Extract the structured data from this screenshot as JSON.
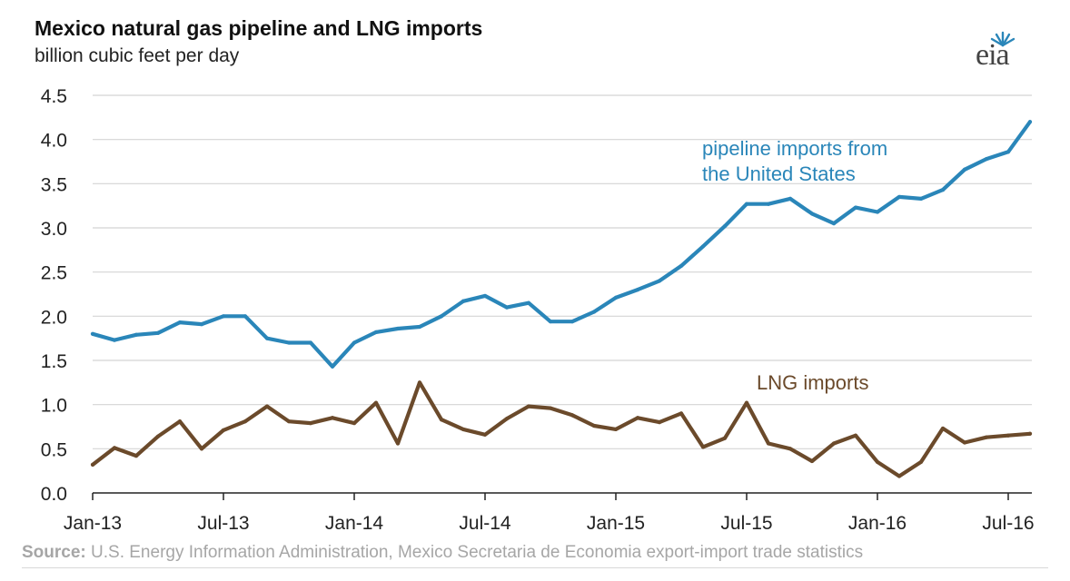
{
  "chart_data": {
    "type": "line",
    "title": "Mexico natural gas pipeline and LNG imports",
    "subtitle": "billion cubic feet per day",
    "xlabel": "",
    "ylabel": "",
    "ylim": [
      0,
      4.5
    ],
    "yticks": [
      "0.0",
      "0.5",
      "1.0",
      "1.5",
      "2.0",
      "2.5",
      "3.0",
      "3.5",
      "4.0",
      "4.5"
    ],
    "xticks": [
      "Jan-13",
      "Jul-13",
      "Jan-14",
      "Jul-14",
      "Jan-15",
      "Jul-15",
      "Jan-16",
      "Jul-16"
    ],
    "grid": true,
    "legend": "none",
    "x": [
      "2013-01",
      "2013-02",
      "2013-03",
      "2013-04",
      "2013-05",
      "2013-06",
      "2013-07",
      "2013-08",
      "2013-09",
      "2013-10",
      "2013-11",
      "2013-12",
      "2014-01",
      "2014-02",
      "2014-03",
      "2014-04",
      "2014-05",
      "2014-06",
      "2014-07",
      "2014-08",
      "2014-09",
      "2014-10",
      "2014-11",
      "2014-12",
      "2015-01",
      "2015-02",
      "2015-03",
      "2015-04",
      "2015-05",
      "2015-06",
      "2015-07",
      "2015-08",
      "2015-09",
      "2015-10",
      "2015-11",
      "2015-12",
      "2016-01",
      "2016-02",
      "2016-03",
      "2016-04",
      "2016-05",
      "2016-06",
      "2016-07",
      "2016-08"
    ],
    "series": [
      {
        "name": "pipeline imports from the United States",
        "label_lines": [
          "pipeline imports from",
          "the United States"
        ],
        "color": "#2a86b9",
        "values": [
          1.8,
          1.73,
          1.79,
          1.81,
          1.93,
          1.91,
          2.0,
          2.0,
          1.75,
          1.7,
          1.7,
          1.43,
          1.7,
          1.82,
          1.86,
          1.88,
          2.0,
          2.17,
          2.23,
          2.1,
          2.15,
          1.94,
          1.94,
          2.05,
          2.21,
          2.3,
          2.4,
          2.57,
          2.79,
          3.02,
          3.27,
          3.27,
          3.33,
          3.16,
          3.05,
          3.23,
          3.18,
          3.35,
          3.33,
          3.43,
          3.66,
          3.78,
          3.86,
          4.2
        ]
      },
      {
        "name": "LNG imports",
        "label_lines": [
          "LNG imports"
        ],
        "color": "#6b4a2b",
        "values": [
          0.32,
          0.51,
          0.42,
          0.64,
          0.81,
          0.5,
          0.71,
          0.81,
          0.98,
          0.81,
          0.79,
          0.85,
          0.79,
          1.02,
          0.56,
          1.25,
          0.83,
          0.72,
          0.66,
          0.84,
          0.98,
          0.96,
          0.88,
          0.76,
          0.72,
          0.85,
          0.8,
          0.9,
          0.52,
          0.62,
          1.02,
          0.56,
          0.5,
          0.36,
          0.56,
          0.65,
          0.35,
          0.19,
          0.35,
          0.73,
          0.57,
          0.63,
          0.65,
          0.67
        ]
      }
    ]
  },
  "source": {
    "label": "Source:",
    "text": " U.S. Energy Information Administration, Mexico Secretaria de Economia export-import trade statistics"
  },
  "logo": {
    "text": "eia",
    "icon": "eia-sunburst-icon",
    "color": "#2a86b9"
  }
}
